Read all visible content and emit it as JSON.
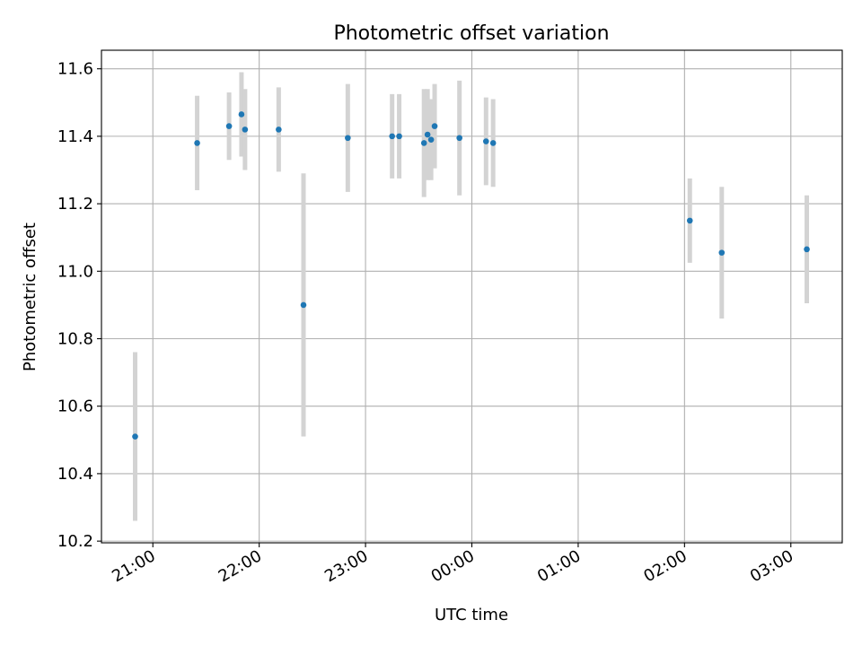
{
  "chart_data": {
    "type": "scatter",
    "title": "Photometric offset variation",
    "xlabel": "UTC time",
    "ylabel": "Photometric offset",
    "x_type": "time",
    "x_start_date": "2000-01-01",
    "xlim": [
      "2000-01-01T20:31:00",
      "2000-01-02T03:29:00"
    ],
    "ylim": [
      10.195,
      11.655
    ],
    "grid": true,
    "xticks": [
      {
        "time": "2000-01-01T21:00",
        "label": "21:00"
      },
      {
        "time": "2000-01-01T22:00",
        "label": "22:00"
      },
      {
        "time": "2000-01-01T23:00",
        "label": "23:00"
      },
      {
        "time": "2000-01-02T00:00",
        "label": "00:00"
      },
      {
        "time": "2000-01-02T01:00",
        "label": "01:00"
      },
      {
        "time": "2000-01-02T02:00",
        "label": "02:00"
      },
      {
        "time": "2000-01-02T03:00",
        "label": "03:00"
      }
    ],
    "yticks": [
      {
        "value": 10.2,
        "label": "10.2"
      },
      {
        "value": 10.4,
        "label": "10.4"
      },
      {
        "value": 10.6,
        "label": "10.6"
      },
      {
        "value": 10.8,
        "label": "10.8"
      },
      {
        "value": 11.0,
        "label": "11.0"
      },
      {
        "value": 11.2,
        "label": "11.2"
      },
      {
        "value": 11.4,
        "label": "11.4"
      },
      {
        "value": 11.6,
        "label": "11.6"
      }
    ],
    "colors": {
      "points": "#1f77b4",
      "errorbars": "#d3d3d3",
      "grid": "#b0b0b0"
    },
    "series": [
      {
        "points": [
          {
            "x": "2000-01-01T20:50",
            "y": 10.51,
            "err": 0.25
          },
          {
            "x": "2000-01-01T21:25",
            "y": 11.38,
            "err": 0.14
          },
          {
            "x": "2000-01-01T21:43",
            "y": 11.43,
            "err": 0.1
          },
          {
            "x": "2000-01-01T21:50",
            "y": 11.465,
            "err": 0.125
          },
          {
            "x": "2000-01-01T21:52",
            "y": 11.42,
            "err": 0.12
          },
          {
            "x": "2000-01-01T22:11",
            "y": 11.42,
            "err": 0.125
          },
          {
            "x": "2000-01-01T22:25",
            "y": 10.9,
            "err": 0.39
          },
          {
            "x": "2000-01-01T22:50",
            "y": 11.395,
            "err": 0.16
          },
          {
            "x": "2000-01-01T23:15",
            "y": 11.4,
            "err": 0.125
          },
          {
            "x": "2000-01-01T23:19",
            "y": 11.4,
            "err": 0.125
          },
          {
            "x": "2000-01-01T23:33",
            "y": 11.38,
            "err": 0.16
          },
          {
            "x": "2000-01-01T23:35",
            "y": 11.405,
            "err": 0.135
          },
          {
            "x": "2000-01-01T23:37",
            "y": 11.39,
            "err": 0.12
          },
          {
            "x": "2000-01-01T23:39",
            "y": 11.43,
            "err": 0.125
          },
          {
            "x": "2000-01-01T23:53",
            "y": 11.395,
            "err": 0.17
          },
          {
            "x": "2000-01-02T00:08",
            "y": 11.385,
            "err": 0.13
          },
          {
            "x": "2000-01-02T00:12",
            "y": 11.38,
            "err": 0.13
          },
          {
            "x": "2000-01-02T02:03",
            "y": 11.15,
            "err": 0.125
          },
          {
            "x": "2000-01-02T02:21",
            "y": 11.055,
            "err": 0.195
          },
          {
            "x": "2000-01-02T03:09",
            "y": 11.065,
            "err": 0.16
          }
        ]
      }
    ]
  }
}
